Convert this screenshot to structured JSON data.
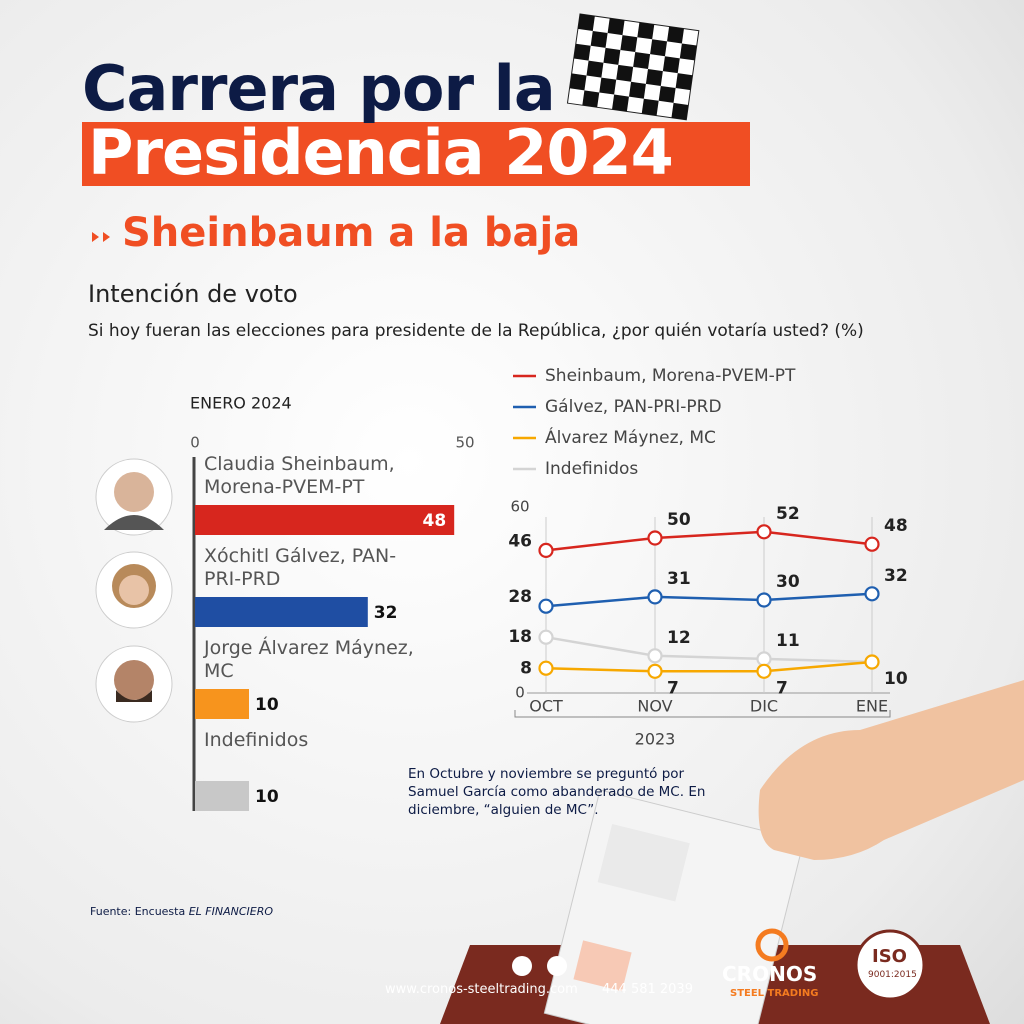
{
  "header": {
    "title_line1": "Carrera por la",
    "title_line2": "Presidencia 2024",
    "subtitle": "Sheinbaum a la baja",
    "section": "Intención de voto",
    "question": "Si hoy fueran las elecciones para presidente de la República, ¿por quién votaría usted? (%)"
  },
  "chart_data": [
    {
      "type": "hbar",
      "title": "ENERO 2024",
      "categories": [
        "Claudia Sheinbaum, Morena-PVEM-PT",
        "Xóchitl Gálvez, PAN-PRI-PRD",
        "Jorge Álvarez Máynez, MC",
        "Indefinidos"
      ],
      "values": [
        48,
        32,
        10,
        10
      ],
      "colors": [
        "#d7261e",
        "#1f4ea3",
        "#f7941d",
        "#c8c8c8"
      ],
      "xlim": [
        0,
        50
      ],
      "xticks": [
        0,
        50
      ]
    },
    {
      "type": "line",
      "categories": [
        "OCT",
        "NOV",
        "DIC",
        "ENE"
      ],
      "xlabel": "2023",
      "ylim": [
        0,
        60
      ],
      "yticks": [
        0,
        60
      ],
      "grid": true,
      "series": [
        {
          "name": "Sheinbaum, Morena-PVEM-PT",
          "color": "#d7261e",
          "values": [
            46,
            50,
            52,
            48
          ]
        },
        {
          "name": "Gálvez, PAN-PRI-PRD",
          "color": "#1f5fb0",
          "values": [
            28,
            31,
            30,
            32
          ]
        },
        {
          "name": "Álvarez Máynez, MC",
          "color": "#f7a800",
          "values": [
            8,
            7,
            7,
            10
          ]
        },
        {
          "name": "Indefinidos",
          "color": "#d4d4d4",
          "values": [
            18,
            12,
            11,
            10
          ],
          "value_labels": [
            "18",
            "12",
            "11",
            null
          ]
        }
      ]
    }
  ],
  "note": "En Octubre y noviembre se preguntó por Samuel García como abanderado de MC. En diciembre, “alguien de MC”.",
  "source": {
    "prefix": "Fuente: Encuesta",
    "name": "EL FINANCIERO"
  },
  "footer": {
    "website": "www.cronos-steeltrading.com",
    "phone": "444 581 2039",
    "brand": "CRONOS",
    "brand_sub": "STEEL TRADING",
    "iso": "ISO",
    "iso_code": "9001:2015"
  }
}
